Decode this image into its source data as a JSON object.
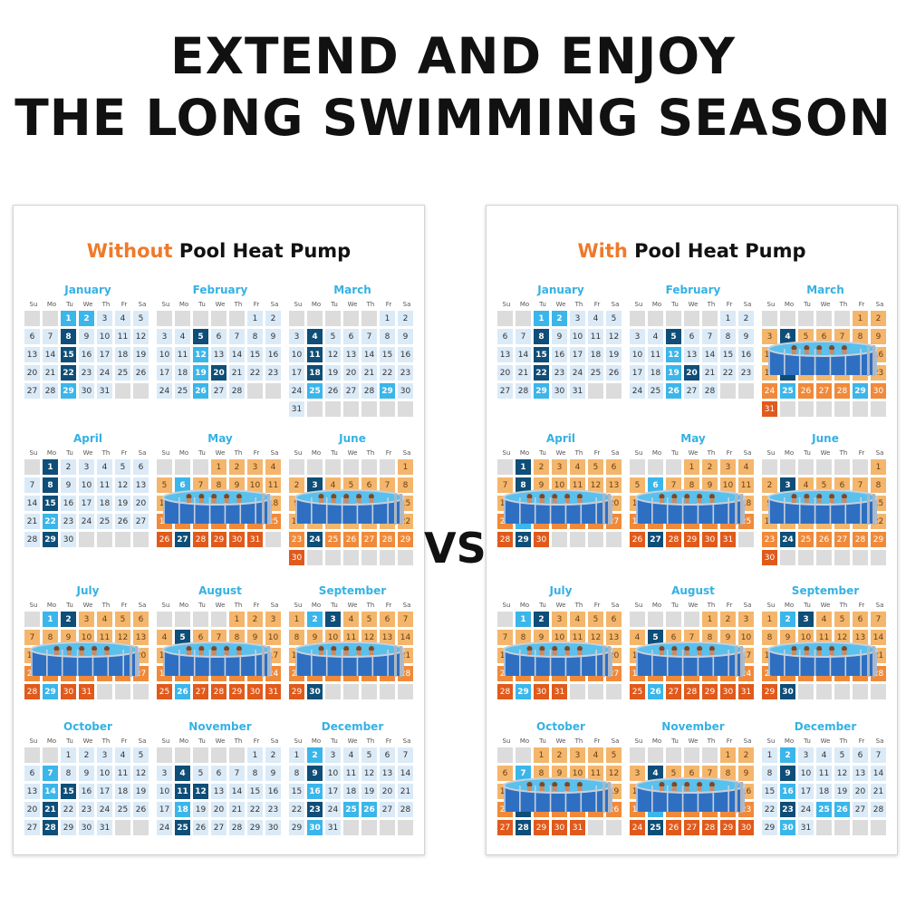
{
  "header": {
    "line1": "EXTEND AND ENJOY",
    "line2": "THE LONG SWIMMING SEASON"
  },
  "vs_label": "VS",
  "weekdays": [
    "Su",
    "Mo",
    "Tu",
    "We",
    "Th",
    "Fr",
    "Sa"
  ],
  "panels": {
    "without": {
      "accent": "Without",
      "rest": " Pool Heat Pump"
    },
    "with": {
      "accent": "With",
      "rest": " Pool Heat Pump"
    }
  },
  "colors": {
    "accent": "#ee7a2c",
    "month_name": "#35b1e4",
    "day_light": "#dbeaf7",
    "day_highlight": "#3bb6ea",
    "day_dark": "#0e4e78",
    "swim_day": "#f4b66c",
    "swim_day_strong": "#e05a1c"
  },
  "months": [
    {
      "name": "January",
      "offset": 2,
      "days": 31,
      "t": [
        1,
        2,
        29
      ],
      "d": [
        8,
        15,
        22
      ]
    },
    {
      "name": "February",
      "offset": 5,
      "days": 28,
      "t": [
        12,
        19,
        26
      ],
      "d": [
        5,
        20
      ]
    },
    {
      "name": "March",
      "offset": 5,
      "days": 31,
      "t": [
        25,
        29
      ],
      "d": [
        4,
        11,
        18
      ]
    },
    {
      "name": "April",
      "offset": 1,
      "days": 30,
      "t": [
        22
      ],
      "d": [
        1,
        8,
        15,
        29
      ]
    },
    {
      "name": "May",
      "offset": 3,
      "days": 31,
      "t": [
        6
      ],
      "d": [
        27
      ]
    },
    {
      "name": "June",
      "offset": 6,
      "days": 30,
      "t": [],
      "d": [
        3,
        24
      ]
    },
    {
      "name": "July",
      "offset": 1,
      "days": 31,
      "t": [
        1,
        29
      ],
      "d": [
        2
      ]
    },
    {
      "name": "August",
      "offset": 4,
      "days": 31,
      "t": [
        26
      ],
      "d": [
        5
      ]
    },
    {
      "name": "September",
      "offset": 0,
      "days": 30,
      "t": [
        2
      ],
      "d": [
        3,
        30
      ]
    },
    {
      "name": "October",
      "offset": 2,
      "days": 31,
      "t": [
        7,
        14
      ],
      "d": [
        15,
        21,
        28
      ]
    },
    {
      "name": "November",
      "offset": 5,
      "days": 30,
      "t": [
        18
      ],
      "d": [
        4,
        11,
        12,
        25
      ]
    },
    {
      "name": "December",
      "offset": 0,
      "days": 31,
      "t": [
        2,
        16,
        23,
        25,
        26,
        30
      ],
      "d": [
        9,
        23
      ]
    }
  ],
  "swim_months": {
    "without": [
      "May",
      "June",
      "July",
      "August",
      "September"
    ],
    "with": [
      "March",
      "April",
      "May",
      "June",
      "July",
      "August",
      "September",
      "October",
      "November"
    ]
  }
}
